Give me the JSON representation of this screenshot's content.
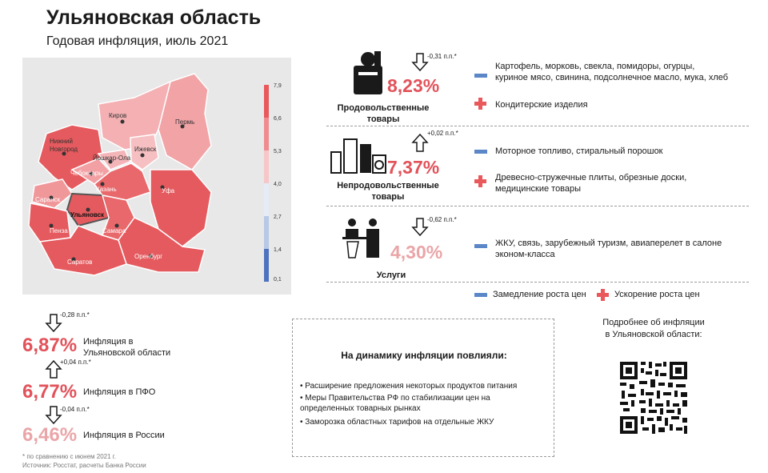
{
  "header": {
    "title": "Ульяновская область",
    "subtitle": "Годовая инфляция, июль 2021"
  },
  "map": {
    "regions": [
      {
        "name": "Нижний\nНовгород",
        "label_lines": [
          "Нижний",
          "Новгород"
        ]
      },
      {
        "name": "Киров"
      },
      {
        "name": "Пермь"
      },
      {
        "name": "Ижевск"
      },
      {
        "name": "Йошкар-Ола"
      },
      {
        "name": "Чебоксары"
      },
      {
        "name": "Казань"
      },
      {
        "name": "Уфа"
      },
      {
        "name": "Саранск"
      },
      {
        "name": "Ульяновск"
      },
      {
        "name": "Пенза"
      },
      {
        "name": "Самара"
      },
      {
        "name": "Оренбург"
      },
      {
        "name": "Саратов"
      }
    ],
    "scale_ticks": [
      "7,9",
      "6,6",
      "5,3",
      "4,0",
      "2,7",
      "1,4",
      "0,1"
    ],
    "scale_colors": [
      "#e9585b",
      "#f08c8f",
      "#f7c6c8",
      "#e6ecf6",
      "#b7c9e6",
      "#7f9fd3",
      "#4d73bf"
    ]
  },
  "categories": [
    {
      "name_lines": [
        "Продовольственные",
        "товары"
      ],
      "value": "8,23%",
      "delta": "-0,31 п.п.*",
      "direction": "down",
      "items": [
        {
          "type": "minus",
          "lines": [
            "Картофель, морковь, свекла, помидоры, огурцы,",
            "куриное мясо, свинина, подсолнечное масло, мука, хлеб"
          ]
        },
        {
          "type": "plus",
          "lines": [
            "Кондитерские изделия"
          ]
        }
      ]
    },
    {
      "name_lines": [
        "Непродовольственные",
        "товары"
      ],
      "value": "7,37%",
      "delta": "+0,02 п.п.*",
      "direction": "up",
      "items": [
        {
          "type": "minus",
          "lines": [
            "Моторное топливо, стиральный порошок"
          ]
        },
        {
          "type": "plus",
          "lines": [
            "Древесно-стружечные плиты, обрезные доски,",
            "медицинские товары"
          ]
        }
      ]
    },
    {
      "name_lines": [
        "Услуги"
      ],
      "value": "4,30%",
      "delta": "-0,62 п.п.*",
      "direction": "down",
      "items": [
        {
          "type": "minus",
          "lines": [
            "ЖКУ, связь, зарубежный туризм, авиаперелет в салоне",
            "эконом-класса"
          ]
        }
      ]
    }
  ],
  "legend": {
    "minus": "Замедление роста цен",
    "plus": "Ускорение роста цен"
  },
  "inflation": [
    {
      "value": "6,87%",
      "delta": "-0,28 п.п.*",
      "direction": "down",
      "label_lines": [
        "Инфляция в",
        "Ульяновской области"
      ]
    },
    {
      "value": "6,77%",
      "delta": "+0,04 п.п.*",
      "direction": "up",
      "label_lines": [
        "Инфляция в ПФО"
      ]
    },
    {
      "value": "6,46%",
      "delta": "-0,04 п.п.*",
      "direction": "down",
      "label_lines": [
        "Инфляция в России"
      ]
    }
  ],
  "factors": {
    "title": "На динамику инфляции повлияли:",
    "items": [
      {
        "lines": [
          "• Расширение предложения некоторых продуктов питания"
        ]
      },
      {
        "lines": [
          "• Меры Правительства РФ по стабилизации цен на",
          "определенных товарных рынках"
        ]
      },
      {
        "lines": [
          "• Заморозка областных тарифов на отдельные ЖКУ"
        ]
      }
    ]
  },
  "qr": {
    "caption_lines": [
      "Подробнее об инфляции",
      "в Ульяновской области:"
    ]
  },
  "footnotes": {
    "note": "* по сравнению с июнем 2021 г.",
    "source": "Источник: Росстат, расчеты Банка России"
  },
  "colors": {
    "accent_red": "#e2525a",
    "pale_red": "#eaa5a8",
    "minus_blue": "#5b87c9",
    "plus_red": "#e9585b"
  }
}
